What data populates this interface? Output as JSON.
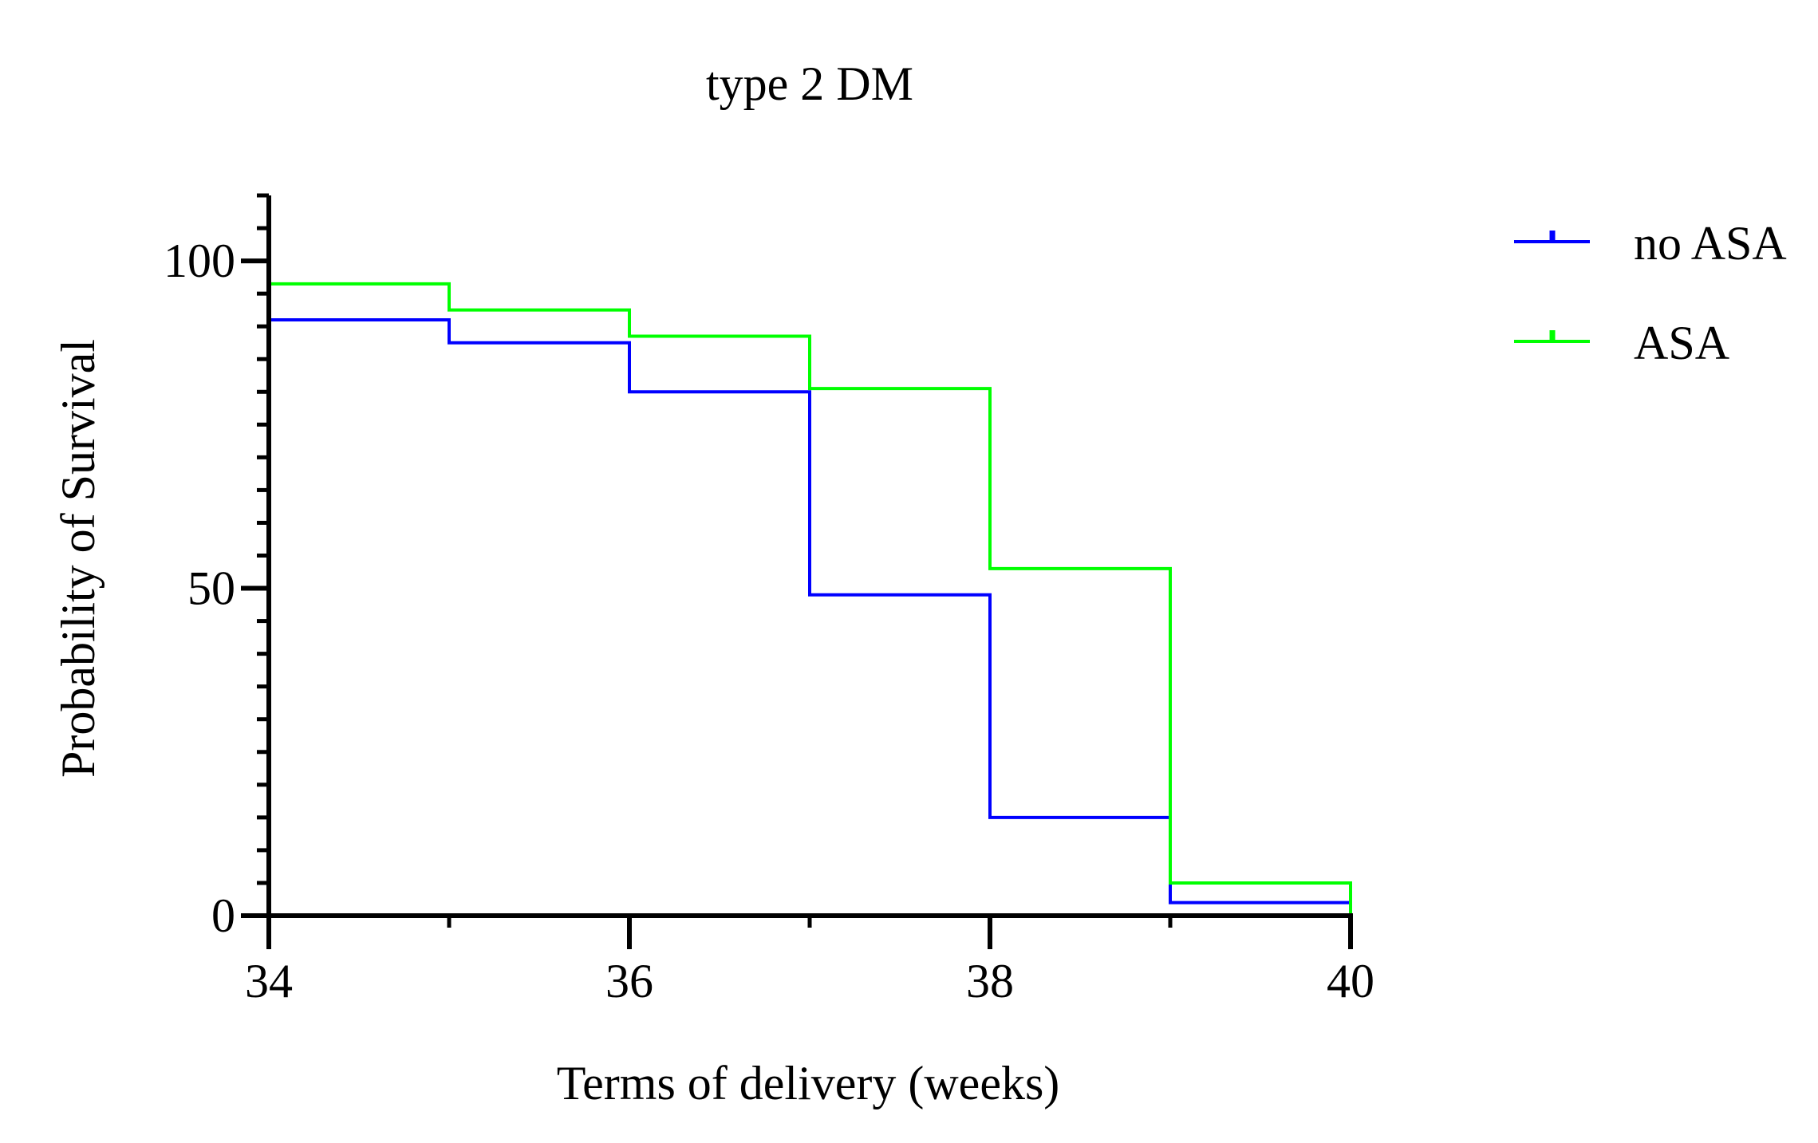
{
  "chart_data": {
    "type": "line",
    "step": true,
    "title": "type 2 DM",
    "xlabel": "Terms of delivery (weeks)",
    "ylabel": "Probability of Survival",
    "xlim": [
      34,
      40
    ],
    "ylim": [
      0,
      110
    ],
    "xticks": [
      34,
      36,
      38,
      40
    ],
    "xtick_labels": [
      "34",
      "36",
      "38",
      "40"
    ],
    "yticks": [
      0,
      50,
      100
    ],
    "ytick_labels": [
      "0",
      "50",
      "100"
    ],
    "y_minor_step": 5,
    "x_minor_step": 1,
    "legend_position": "top-right",
    "series": [
      {
        "name": "no ASA",
        "color": "#0000ff",
        "x": [
          34,
          35,
          36,
          37,
          38,
          39,
          40
        ],
        "y": [
          91,
          87.5,
          80,
          49,
          15,
          2,
          0
        ]
      },
      {
        "name": "ASA",
        "color": "#00ff00",
        "x": [
          34,
          35,
          36,
          37,
          38,
          39,
          40
        ],
        "y": [
          96.5,
          92.5,
          88.5,
          80.5,
          53,
          5,
          0
        ]
      }
    ]
  }
}
